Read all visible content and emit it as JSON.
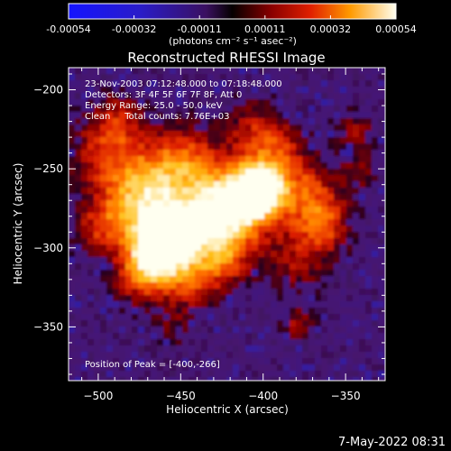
{
  "colorbar": {
    "tick_labels": [
      "-0.00054",
      "-0.00032",
      "-0.00011",
      "0.00011",
      "0.00032",
      "0.00054"
    ],
    "units_label": "(photons cm⁻² s⁻¹ asec⁻²)",
    "range": [
      -0.00054,
      0.00054
    ]
  },
  "title": "Reconstructed RHESSI Image",
  "info_lines": [
    "23-Nov-2003 07:12:48.000 to 07:18:48.000",
    "Detectors: 3F 4F 5F 6F 7F 8F, Att 0",
    "Energy Range: 25.0 - 50.0 keV",
    "Clean     Total counts: 7.76E+03"
  ],
  "peak_label": "Position of Peak = [-400,-266]",
  "axes": {
    "xlabel": "Heliocentric X (arcsec)",
    "ylabel": "Heliocentric Y (arcsec)",
    "xlim": [
      -518,
      -326
    ],
    "ylim": [
      -384,
      -186
    ],
    "x_ticks": [
      -500,
      -450,
      -400,
      -350
    ],
    "y_ticks": [
      -200,
      -250,
      -300,
      -350
    ],
    "x_tick_labels": [
      "−500",
      "−450",
      "−400",
      "−350"
    ],
    "y_tick_labels": [
      "−200",
      "−250",
      "−300",
      "−350"
    ]
  },
  "timestamp": "7-May-2022 08:31",
  "colors": {
    "background": "#000000",
    "text": "#ffffff"
  }
}
